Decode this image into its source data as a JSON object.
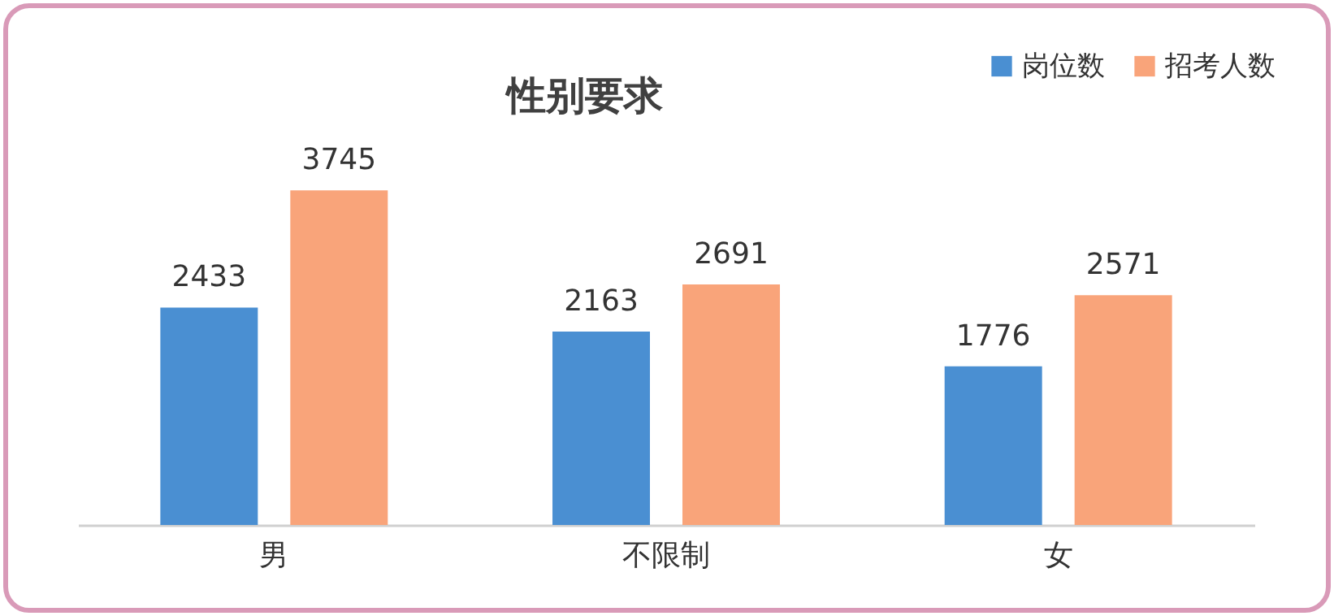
{
  "chart_data": {
    "type": "bar",
    "title": "性别要求",
    "categories": [
      "男",
      "不限制",
      "女"
    ],
    "series": [
      {
        "name": "岗位数",
        "color": "#4a8fd2",
        "values": [
          2433,
          2163,
          1776
        ]
      },
      {
        "name": "招考人数",
        "color": "#f9a47a",
        "values": [
          3745,
          2691,
          2571
        ]
      }
    ],
    "data_labels": true,
    "legend": "top right"
  }
}
